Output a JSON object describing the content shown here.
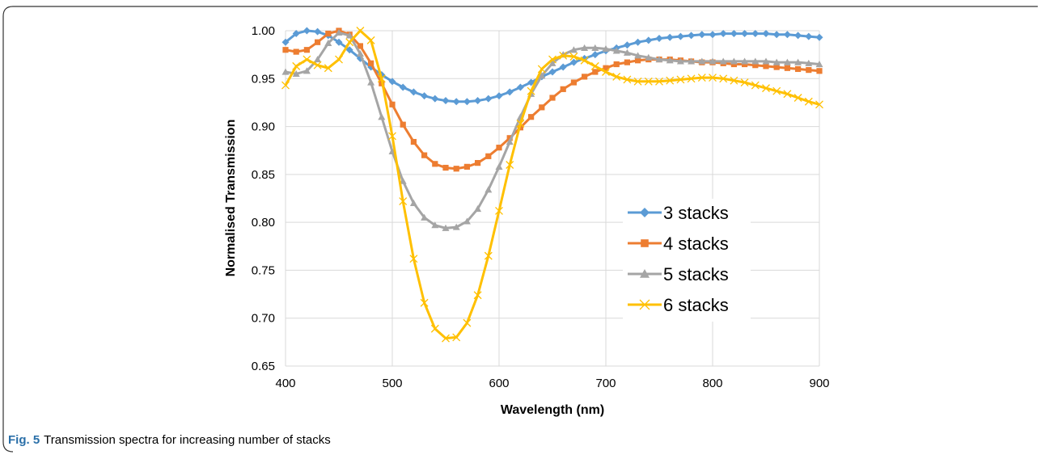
{
  "chart_data": {
    "type": "line",
    "x_label": "Wavelength (nm)",
    "y_label": "Normalised Transmission",
    "x": [
      400,
      410,
      420,
      430,
      440,
      450,
      460,
      470,
      480,
      490,
      500,
      510,
      520,
      530,
      540,
      550,
      560,
      570,
      580,
      590,
      600,
      610,
      620,
      630,
      640,
      650,
      660,
      670,
      680,
      690,
      700,
      710,
      720,
      730,
      740,
      750,
      760,
      770,
      780,
      790,
      800,
      810,
      820,
      830,
      840,
      850,
      860,
      870,
      880,
      890,
      900
    ],
    "series": [
      {
        "name": "3 stacks",
        "color": "#5b9bd5",
        "marker": "diamond",
        "values": [
          0.988,
          0.997,
          1.0,
          0.999,
          0.995,
          0.988,
          0.98,
          0.971,
          0.962,
          0.954,
          0.947,
          0.941,
          0.936,
          0.932,
          0.929,
          0.927,
          0.926,
          0.926,
          0.927,
          0.929,
          0.932,
          0.936,
          0.941,
          0.946,
          0.952,
          0.957,
          0.962,
          0.967,
          0.971,
          0.975,
          0.979,
          0.982,
          0.985,
          0.988,
          0.99,
          0.992,
          0.993,
          0.994,
          0.995,
          0.996,
          0.996,
          0.997,
          0.997,
          0.997,
          0.997,
          0.997,
          0.996,
          0.996,
          0.995,
          0.994,
          0.993
        ]
      },
      {
        "name": "4 stacks",
        "color": "#ed7d31",
        "marker": "square",
        "values": [
          0.98,
          0.978,
          0.98,
          0.988,
          0.997,
          1.0,
          0.996,
          0.984,
          0.966,
          0.945,
          0.923,
          0.902,
          0.884,
          0.87,
          0.861,
          0.857,
          0.856,
          0.858,
          0.862,
          0.869,
          0.878,
          0.888,
          0.899,
          0.91,
          0.92,
          0.93,
          0.939,
          0.946,
          0.952,
          0.957,
          0.961,
          0.965,
          0.967,
          0.969,
          0.97,
          0.97,
          0.97,
          0.969,
          0.968,
          0.967,
          0.967,
          0.966,
          0.965,
          0.965,
          0.964,
          0.963,
          0.962,
          0.961,
          0.96,
          0.959,
          0.958
        ]
      },
      {
        "name": "5 stacks",
        "color": "#a5a5a5",
        "marker": "triangle",
        "values": [
          0.957,
          0.955,
          0.958,
          0.97,
          0.987,
          0.998,
          0.995,
          0.976,
          0.946,
          0.91,
          0.874,
          0.843,
          0.82,
          0.805,
          0.797,
          0.794,
          0.795,
          0.801,
          0.814,
          0.834,
          0.858,
          0.884,
          0.91,
          0.934,
          0.953,
          0.966,
          0.975,
          0.98,
          0.982,
          0.982,
          0.981,
          0.979,
          0.977,
          0.974,
          0.972,
          0.97,
          0.969,
          0.968,
          0.968,
          0.968,
          0.968,
          0.968,
          0.968,
          0.968,
          0.968,
          0.968,
          0.967,
          0.967,
          0.967,
          0.966,
          0.965
        ]
      },
      {
        "name": "6 stacks",
        "color": "#ffc000",
        "marker": "x",
        "values": [
          0.943,
          0.963,
          0.97,
          0.964,
          0.961,
          0.97,
          0.988,
          1.0,
          0.99,
          0.95,
          0.89,
          0.822,
          0.762,
          0.716,
          0.689,
          0.679,
          0.68,
          0.695,
          0.724,
          0.765,
          0.812,
          0.86,
          0.903,
          0.937,
          0.96,
          0.97,
          0.974,
          0.973,
          0.969,
          0.963,
          0.957,
          0.952,
          0.949,
          0.947,
          0.947,
          0.947,
          0.948,
          0.949,
          0.95,
          0.951,
          0.951,
          0.95,
          0.948,
          0.946,
          0.943,
          0.94,
          0.937,
          0.934,
          0.93,
          0.926,
          0.923
        ]
      }
    ],
    "xlim": [
      400,
      900
    ],
    "xticks": [
      400,
      500,
      600,
      700,
      800,
      900
    ],
    "ylim": [
      0.65,
      1.0
    ],
    "yticks": [
      {
        "value": 0.65,
        "label": "0.65"
      },
      {
        "value": 0.7,
        "label": "0.70"
      },
      {
        "value": 0.75,
        "label": "0.75"
      },
      {
        "value": 0.8,
        "label": "0.80"
      },
      {
        "value": 0.85,
        "label": "0.85"
      },
      {
        "value": 0.9,
        "label": "0.90"
      },
      {
        "value": 0.95,
        "label": "0.95"
      },
      {
        "value": 1.0,
        "label": "1.00"
      }
    ],
    "grid": true
  },
  "caption": {
    "label": "Fig. 5",
    "text": "Transmission spectra for increasing number of stacks"
  }
}
